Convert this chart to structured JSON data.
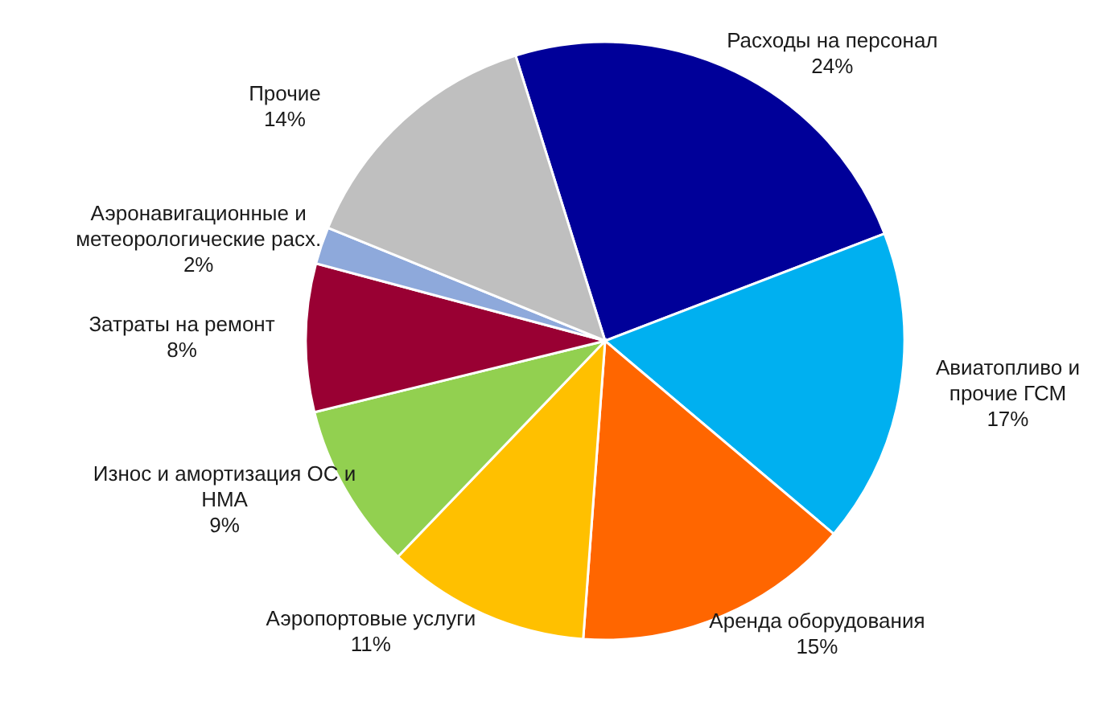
{
  "chart_data": {
    "type": "pie",
    "categories": [
      "Расходы на персонал",
      "Авиатопливо и\nпрочие ГСМ",
      "Аренда оборудования",
      "Аэропортовые услуги",
      "Износ и амортизация ОС и\nНМА",
      "Затраты на ремонт",
      "Аэронавигационные и\nметеорологические расх.",
      "Прочие"
    ],
    "values": [
      24,
      17,
      15,
      11,
      9,
      8,
      2,
      14
    ],
    "colors": [
      "#000099",
      "#00b0f0",
      "#ff6600",
      "#ffc000",
      "#92d050",
      "#990033",
      "#8ea9db",
      "#bfbfbf"
    ],
    "value_labels": [
      "24%",
      "17%",
      "15%",
      "11%",
      "9%",
      "8%",
      "2%",
      "14%"
    ]
  }
}
